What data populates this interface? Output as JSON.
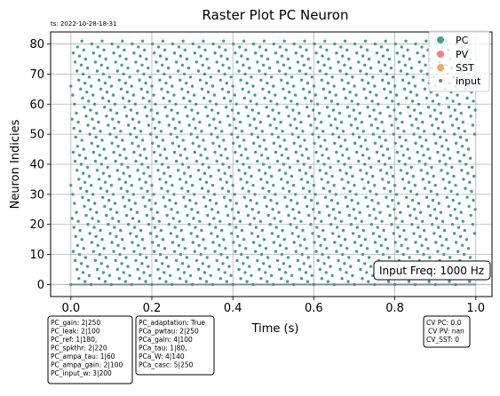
{
  "timestamp": "ts: 2022-10-28-18-31",
  "chart_data": {
    "type": "scatter",
    "title": "Raster Plot PC Neuron",
    "xlabel": "Time (s)",
    "ylabel": "Neuron Indicies",
    "xlim": [
      -0.05,
      1.04
    ],
    "ylim": [
      -4,
      84
    ],
    "x_ticks": [
      0.0,
      0.2,
      0.4,
      0.6,
      0.8,
      1.0
    ],
    "x_tick_labels": [
      "0.0",
      "0.2",
      "0.4",
      "0.6",
      "0.8",
      "1.0"
    ],
    "y_ticks": [
      0,
      10,
      20,
      30,
      40,
      50,
      60,
      70,
      80
    ],
    "y_tick_labels": [
      "0",
      "10",
      "20",
      "30",
      "40",
      "50",
      "60",
      "70",
      "80"
    ],
    "grid": true,
    "legend_position": "top-right",
    "series": [
      {
        "name": "PC",
        "color": "#4a9a94",
        "marker": "dot",
        "neuron_range": [
          0,
          81
        ],
        "time_range": [
          0.0,
          1.0
        ],
        "rate_hz": 20
      },
      {
        "name": "PV",
        "color": "#f08080",
        "marker": "dot"
      },
      {
        "name": "SST",
        "color": "#f4a460",
        "marker": "dot"
      },
      {
        "name": "input",
        "color": "#708090",
        "marker": "small-dot",
        "neuron_range": [
          0,
          0
        ],
        "time_range": [
          0.0,
          1.0
        ],
        "rate_hz": 1000
      }
    ],
    "annotations": {
      "input_freq": "Input Freq: 1000 Hz",
      "pc_params": [
        "PC_gain: 2|250",
        "PC_leak: 2|100",
        "PC_ref: 1|180,",
        "PC_spkthr: 2|220",
        "PC_ampa_tau: 1|60",
        "PC_ampa_gain: 2|100",
        "PC_input_w: 3|200"
      ],
      "pca_params": [
        "PC_adaptation: True",
        "PCa_pwtau: 2|250",
        "PCa_gain: 4|100",
        "PCa_tau: 1|80,",
        "PCa_W: 4|140",
        "PCa_casc: 5|250"
      ],
      "cv_stats": [
        "CV PC: 0.0",
        "CV PV: nan",
        "CV_SST: 0"
      ]
    }
  }
}
